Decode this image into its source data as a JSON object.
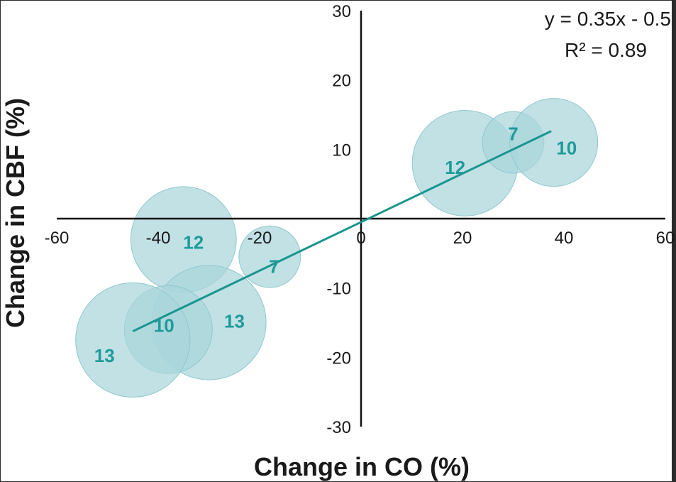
{
  "chart_data": {
    "type": "bubble-scatter",
    "title": "",
    "xlabel": "Change in CO (%)",
    "ylabel": "Change in CBF (%)",
    "xlim": [
      -60,
      60
    ],
    "ylim": [
      -30,
      30
    ],
    "x_ticks": [
      -60,
      -40,
      -20,
      0,
      20,
      40,
      60
    ],
    "y_ticks": [
      30,
      20,
      10,
      -10,
      -20,
      -30
    ],
    "x_tick_labels": [
      "-60",
      "-40",
      "-20",
      "0",
      "20",
      "40",
      "60"
    ],
    "y_tick_labels": [
      "30",
      "20",
      "10",
      "-10",
      "-20",
      "-30"
    ],
    "points": [
      {
        "label": "12",
        "x": 20.5,
        "y": 8,
        "size": 12
      },
      {
        "label": "7",
        "x": 30,
        "y": 11,
        "size": 7
      },
      {
        "label": "10",
        "x": 38,
        "y": 11,
        "size": 10
      },
      {
        "label": "12",
        "x": -35,
        "y": -3,
        "size": 12
      },
      {
        "label": "7",
        "x": -18,
        "y": -5.5,
        "size": 7
      },
      {
        "label": "13",
        "x": -30,
        "y": -15,
        "size": 13
      },
      {
        "label": "10",
        "x": -38,
        "y": -16,
        "size": 10
      },
      {
        "label": "13",
        "x": -45,
        "y": -17.5,
        "size": 13
      }
    ],
    "regression": {
      "slope": 0.35,
      "intercept": -0.5,
      "x_range": [
        -45,
        37.5
      ],
      "equation_label": "y = 0.35x - 0.5",
      "r2_label": "R² = 0.89"
    },
    "colors": {
      "bubble_fill": "#a9d5db",
      "bubble_stroke": "#8fc8cf",
      "bubble_label": "#1f9a9a",
      "regression_line": "#1a958f",
      "axis": "#111111",
      "text": "#1a1a1a",
      "background": "#ffffff"
    }
  }
}
